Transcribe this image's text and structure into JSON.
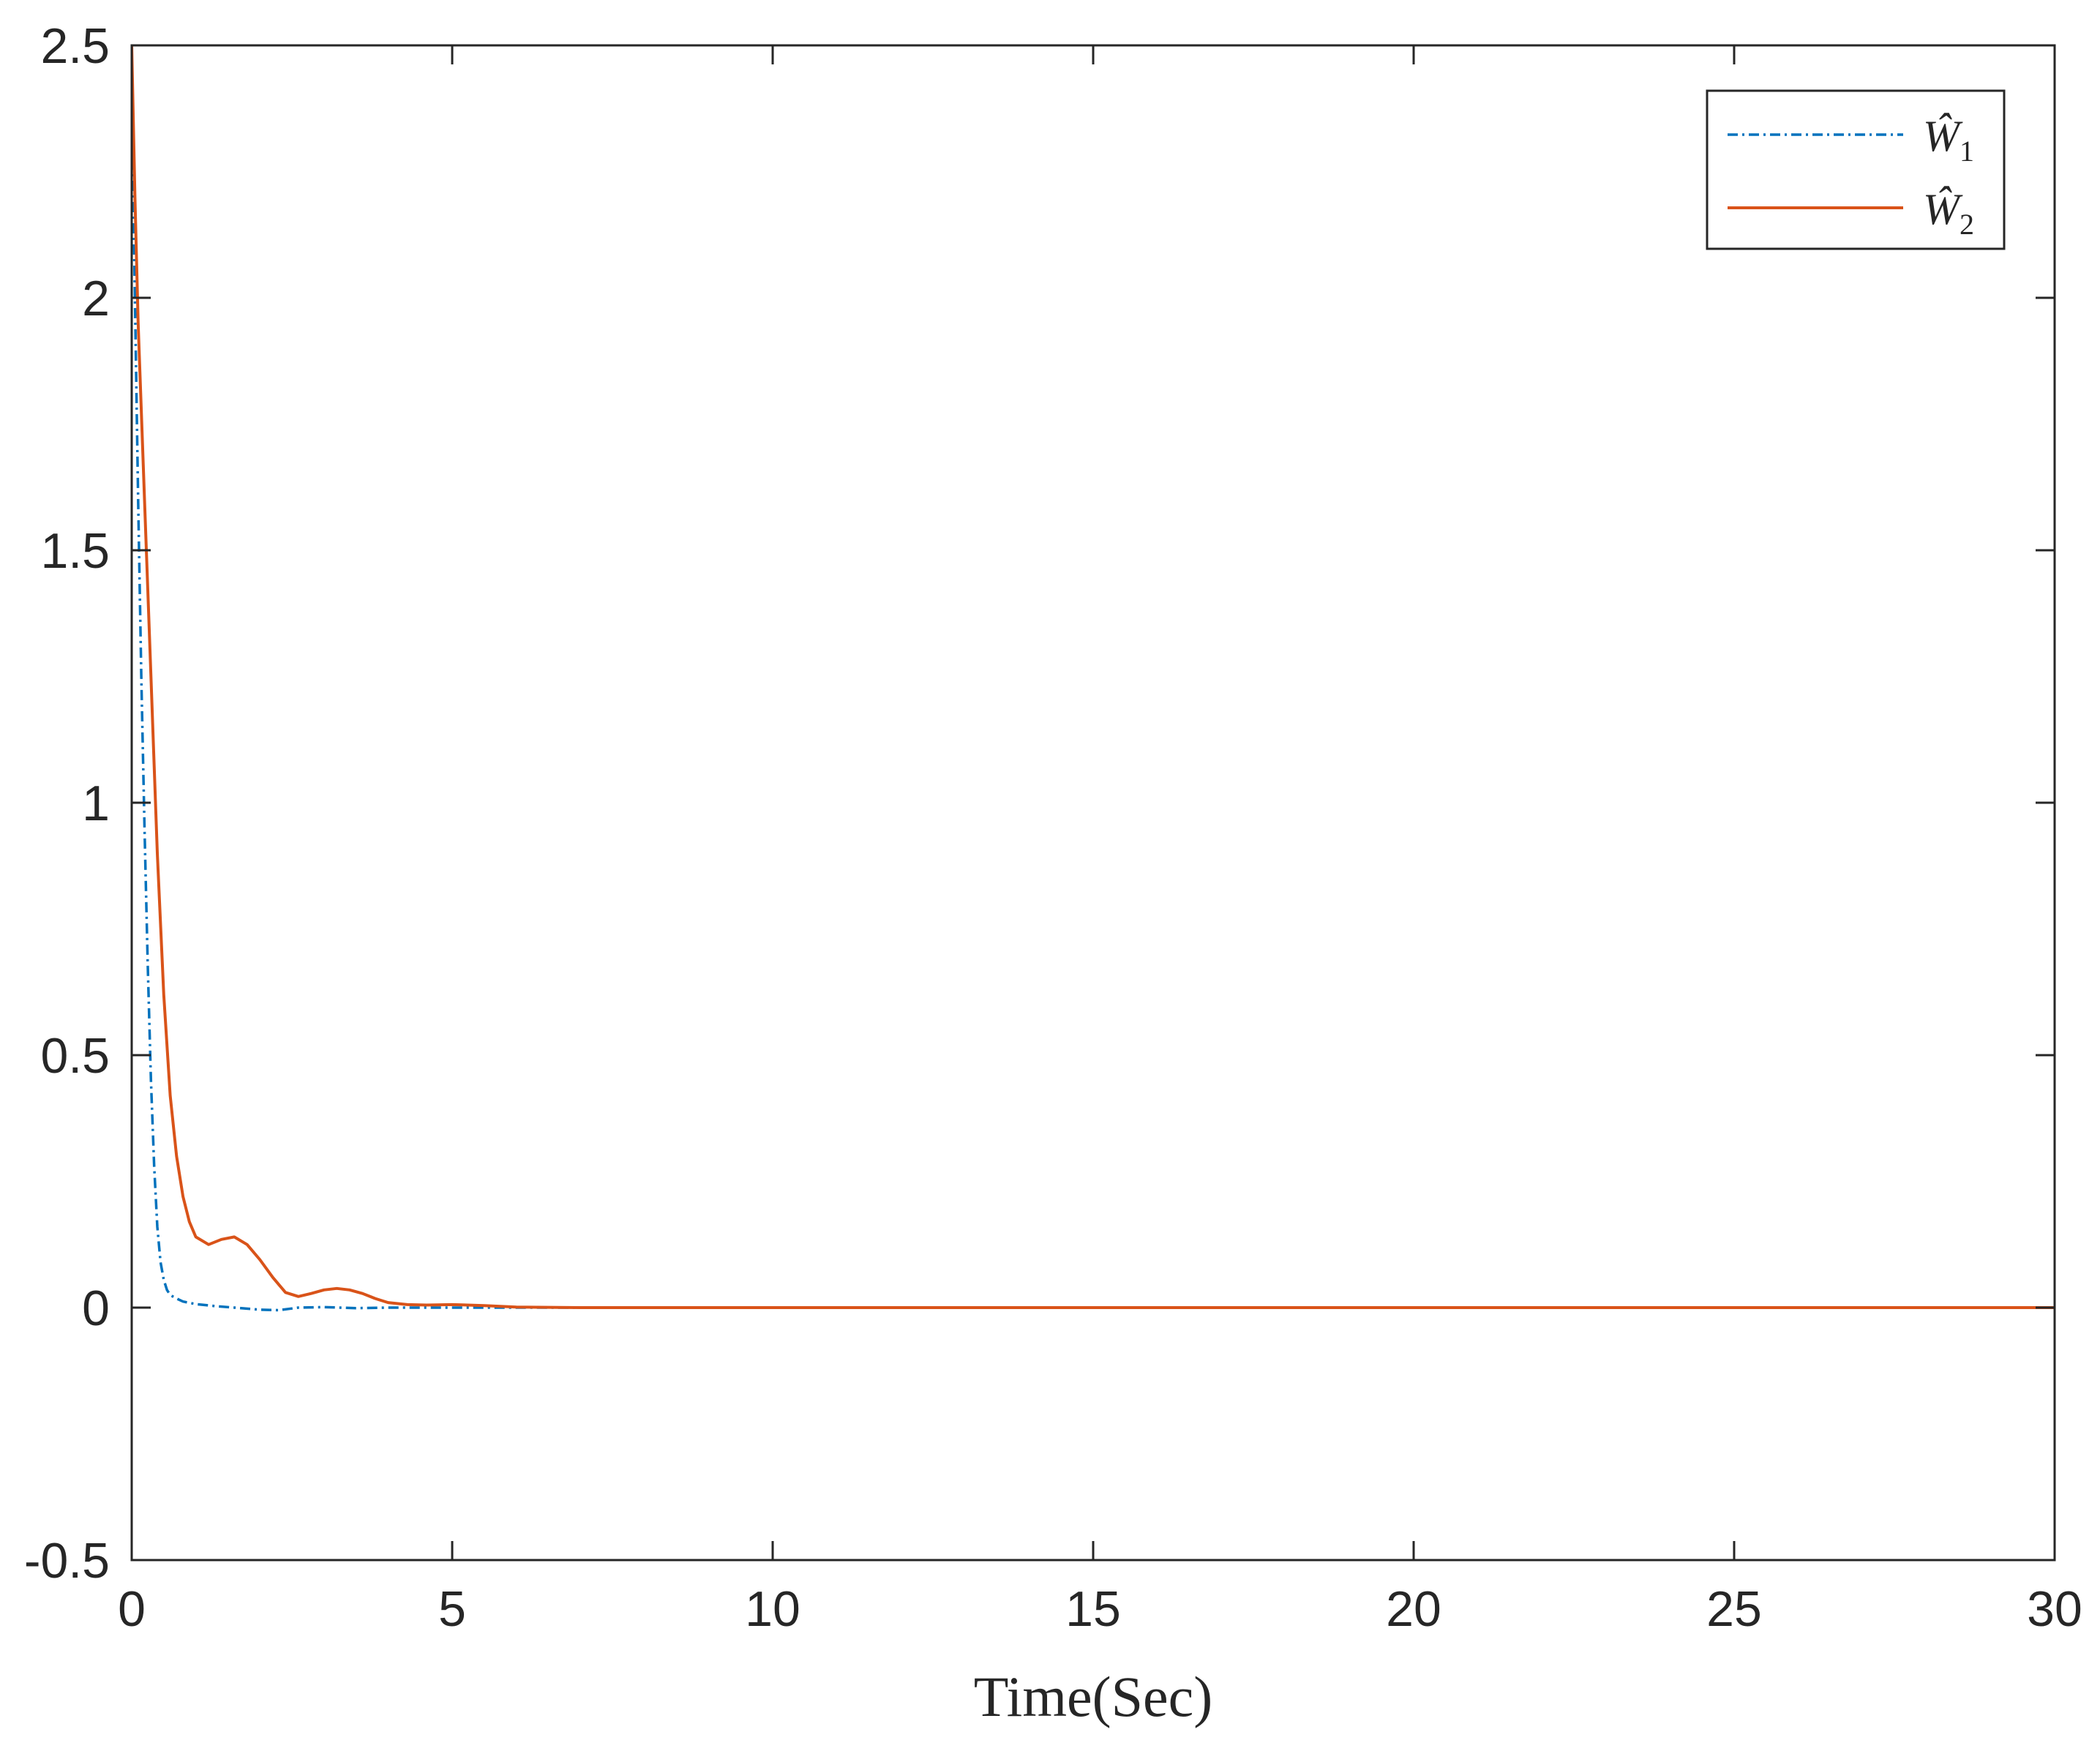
{
  "chart_data": {
    "type": "line",
    "title": "",
    "xlabel": "Time(Sec)",
    "ylabel": "",
    "xlim": [
      0,
      30
    ],
    "ylim": [
      -0.5,
      2.5
    ],
    "xticks": [
      "0",
      "5",
      "10",
      "15",
      "20",
      "25",
      "30"
    ],
    "yticks": [
      "-0.5",
      "0",
      "0.5",
      "1",
      "1.5",
      "2",
      "2.5"
    ],
    "grid": false,
    "legend_position": "top-right",
    "series": [
      {
        "name": "Ŵ1",
        "name_base": "Ŵ",
        "name_sub": "1",
        "color": "#0072BD",
        "style": "dash-dot",
        "x": [
          0,
          0.05,
          0.1,
          0.15,
          0.2,
          0.25,
          0.3,
          0.35,
          0.4,
          0.45,
          0.5,
          0.55,
          0.6,
          0.7,
          0.8,
          1.0,
          1.3,
          1.6,
          2.0,
          2.3,
          2.6,
          3.0,
          3.5,
          4.0,
          5.0,
          6.0,
          8.0,
          10,
          15,
          20,
          25,
          30
        ],
        "y": [
          2.4,
          2.0,
          1.6,
          1.25,
          0.95,
          0.68,
          0.45,
          0.28,
          0.16,
          0.09,
          0.055,
          0.035,
          0.025,
          0.018,
          0.012,
          0.007,
          0.003,
          0.0,
          -0.004,
          -0.005,
          0.0,
          0.001,
          -0.001,
          0.0,
          0.0,
          0.0,
          0.0,
          0.0,
          0.0,
          0.0,
          0.0,
          0.0
        ]
      },
      {
        "name": "Ŵ2",
        "name_base": "Ŵ",
        "name_sub": "2",
        "color": "#D95319",
        "style": "solid",
        "x": [
          0,
          0.05,
          0.1,
          0.2,
          0.3,
          0.4,
          0.5,
          0.6,
          0.7,
          0.8,
          0.9,
          1.0,
          1.2,
          1.4,
          1.6,
          1.8,
          2.0,
          2.2,
          2.4,
          2.6,
          2.8,
          3.0,
          3.2,
          3.4,
          3.6,
          3.8,
          4.0,
          4.3,
          4.6,
          5.0,
          5.5,
          6.0,
          7.0,
          8.0,
          10,
          15,
          20,
          25,
          30
        ],
        "y": [
          2.5,
          2.2,
          1.95,
          1.6,
          1.25,
          0.9,
          0.62,
          0.42,
          0.3,
          0.22,
          0.17,
          0.14,
          0.125,
          0.135,
          0.14,
          0.125,
          0.095,
          0.06,
          0.03,
          0.022,
          0.028,
          0.035,
          0.038,
          0.035,
          0.028,
          0.018,
          0.01,
          0.006,
          0.005,
          0.006,
          0.004,
          0.001,
          0.0,
          0.0,
          0.0,
          0.0,
          0.0,
          0.0,
          0.0
        ]
      }
    ]
  }
}
